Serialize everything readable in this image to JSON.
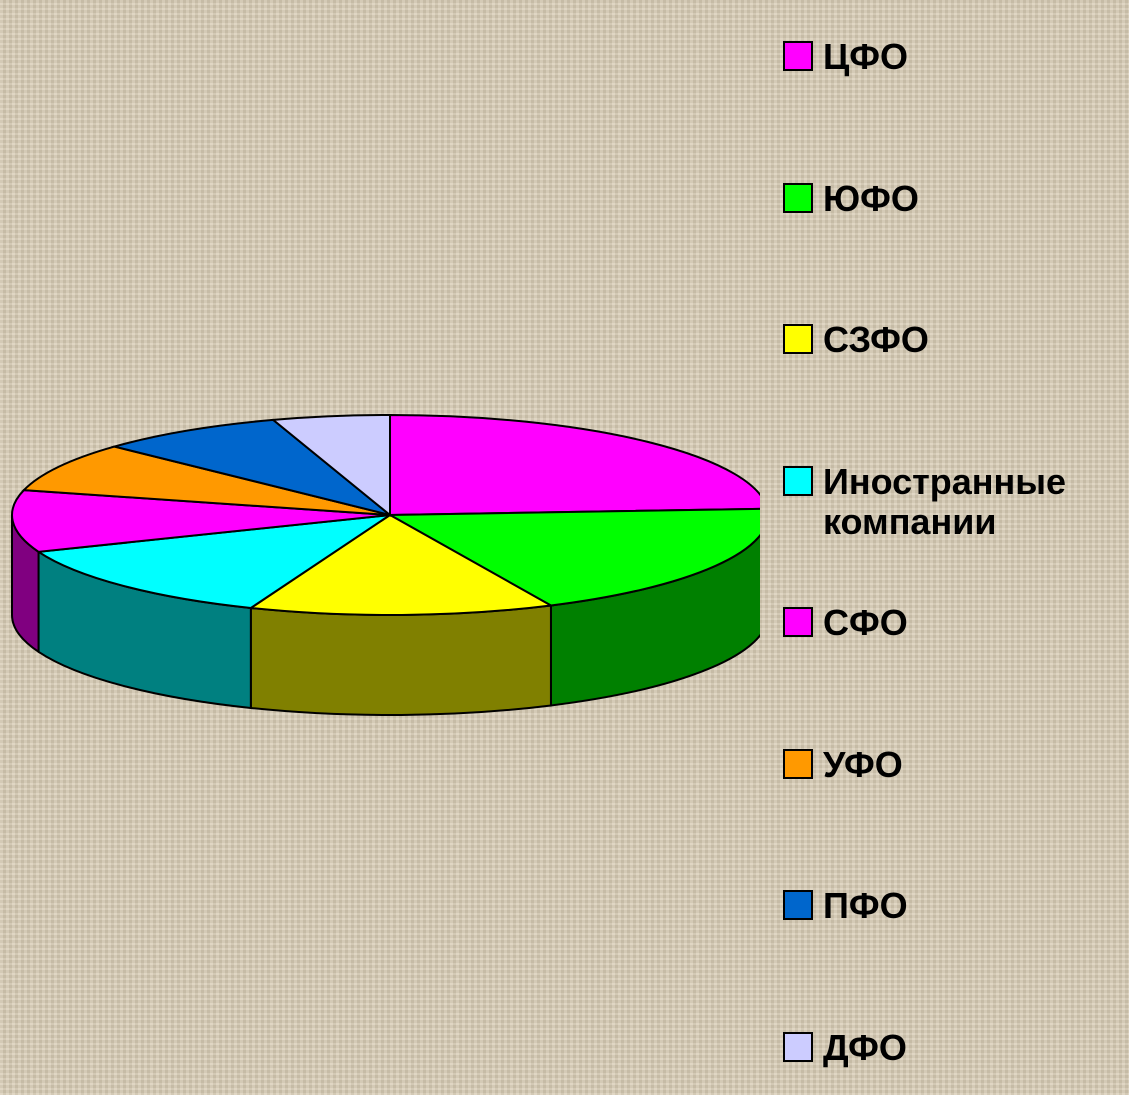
{
  "chart_data": {
    "type": "pie3d",
    "categories": [
      "ЦФО",
      "ЮФО",
      "СЗФО",
      "Иностранные компании",
      "СФО",
      "УФО",
      "ПФО",
      "ДФО"
    ],
    "values": [
      24,
      19,
      13,
      13,
      10,
      8,
      8,
      5
    ],
    "colors": [
      "#ff00ff",
      "#00ff00",
      "#ffff00",
      "#00ffff",
      "#ff00ff",
      "#ff9900",
      "#0066cc",
      "#ccccff"
    ]
  }
}
